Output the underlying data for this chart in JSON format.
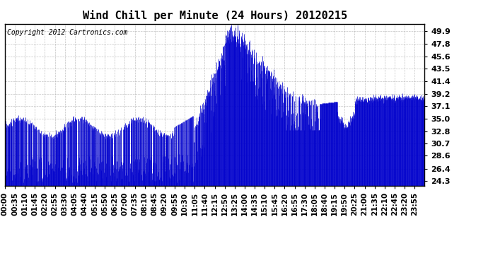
{
  "title": "Wind Chill per Minute (24 Hours) 20120215",
  "copyright": "Copyright 2012 Cartronics.com",
  "line_color": "#0000cc",
  "background_color": "#ffffff",
  "grid_color": "#aaaaaa",
  "yticks": [
    24.3,
    26.4,
    28.6,
    30.7,
    32.8,
    35.0,
    37.1,
    39.2,
    41.4,
    43.5,
    45.6,
    47.8,
    49.9
  ],
  "ylim": [
    23.5,
    51.2
  ],
  "xlim": [
    0,
    1439
  ],
  "xtick_labels": [
    "00:00",
    "00:35",
    "01:10",
    "01:45",
    "02:20",
    "02:55",
    "03:30",
    "04:05",
    "04:40",
    "05:15",
    "05:50",
    "06:25",
    "07:00",
    "07:35",
    "08:10",
    "08:45",
    "09:20",
    "09:55",
    "10:30",
    "11:05",
    "11:40",
    "12:15",
    "12:50",
    "13:25",
    "14:00",
    "14:35",
    "15:10",
    "15:45",
    "16:20",
    "16:55",
    "17:30",
    "18:05",
    "18:40",
    "19:15",
    "19:50",
    "20:25",
    "21:00",
    "21:35",
    "22:10",
    "22:45",
    "23:20",
    "23:55"
  ],
  "xtick_step": 34.26
}
